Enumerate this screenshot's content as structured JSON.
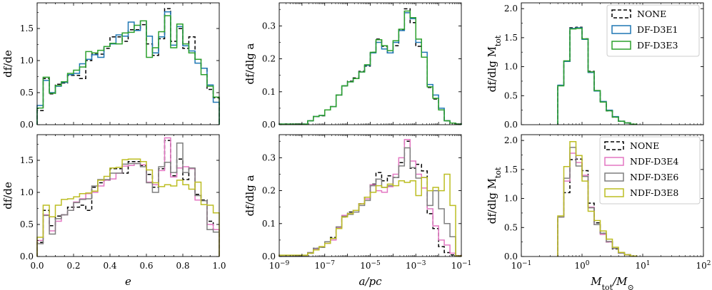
{
  "figure": {
    "legend_top": [
      "NONE",
      "DF-D3E1",
      "DF-D3E3"
    ],
    "legend_bottom": [
      "NONE",
      "NDF-D3E4",
      "NDF-D3E6",
      "NDF-D3E8"
    ]
  },
  "colors": {
    "NONE": "#000000",
    "DF-D3E1": "#1f77b4",
    "DF-D3E3": "#2ca02c",
    "NDF-D3E4": "#e377c2",
    "NDF-D3E6": "#7f7f7f",
    "NDF-D3E8": "#bcbd22"
  },
  "axis_labels": {
    "e_y": "df/de",
    "e_x": "e",
    "a_y": "df/dlg a",
    "a_x": "a/pc",
    "m_y": "df/dlg M",
    "m_y_sub": "tot",
    "m_x": "M",
    "m_x_sub": "tot",
    "m_x_over": "/M",
    "m_x_sun": "⊙"
  },
  "chart_data": [
    {
      "type": "histogram",
      "panel": "top-left",
      "xscale": "linear",
      "xlabel": "",
      "ylabel": "df/de",
      "xlim": [
        0,
        1
      ],
      "ylim": [
        0,
        1.9
      ],
      "xticks": [],
      "yticks": [
        0,
        0.5,
        1.0,
        1.5
      ],
      "ytick_labels": [
        "0.0",
        "0.5",
        "1.0",
        "1.5"
      ],
      "edges": [
        0,
        0.033,
        0.067,
        0.1,
        0.133,
        0.167,
        0.2,
        0.233,
        0.267,
        0.3,
        0.333,
        0.367,
        0.4,
        0.433,
        0.467,
        0.5,
        0.533,
        0.567,
        0.6,
        0.633,
        0.667,
        0.7,
        0.733,
        0.767,
        0.8,
        0.833,
        0.867,
        0.9,
        0.933,
        0.967,
        1.0
      ],
      "series": [
        {
          "name": "NONE",
          "dashed": true,
          "values": [
            0.22,
            0.72,
            0.48,
            0.63,
            0.65,
            0.77,
            0.77,
            0.72,
            1.0,
            1.1,
            1.1,
            1.19,
            1.37,
            1.37,
            1.3,
            1.48,
            1.48,
            1.56,
            1.26,
            1.08,
            1.34,
            1.81,
            1.3,
            1.5,
            1.19,
            1.37,
            1.02,
            0.88,
            0.55,
            0.42
          ]
        },
        {
          "name": "DF-D3E1",
          "values": [
            0.3,
            0.69,
            0.5,
            0.6,
            0.66,
            0.78,
            0.8,
            0.95,
            1.02,
            1.09,
            1.05,
            1.22,
            1.26,
            1.4,
            1.38,
            1.6,
            1.47,
            1.62,
            1.38,
            1.12,
            1.37,
            1.76,
            1.24,
            1.53,
            1.23,
            1.15,
            0.96,
            0.88,
            0.62,
            0.35
          ]
        },
        {
          "name": "DF-D3E3",
          "values": [
            0.26,
            0.74,
            0.49,
            0.61,
            0.67,
            0.8,
            0.85,
            0.9,
            1.14,
            1.12,
            1.16,
            1.22,
            1.27,
            1.26,
            1.43,
            1.44,
            1.55,
            1.62,
            1.05,
            1.2,
            1.45,
            1.7,
            1.2,
            1.57,
            1.26,
            1.12,
            1.02,
            0.78,
            0.6,
            0.43
          ]
        }
      ]
    },
    {
      "type": "histogram",
      "panel": "top-middle",
      "xscale": "log",
      "xlabel": "",
      "ylabel": "df/dlg a",
      "xlim": [
        -9,
        -1
      ],
      "ylim": [
        0,
        0.37
      ],
      "xticks": [],
      "yticks": [
        0,
        0.1,
        0.2,
        0.3
      ],
      "ytick_labels": [
        "0.0",
        "0.1",
        "0.2",
        "0.3"
      ],
      "edges": [
        -9.0,
        -8.75,
        -8.5,
        -8.25,
        -8.0,
        -7.75,
        -7.5,
        -7.25,
        -7.0,
        -6.75,
        -6.5,
        -6.25,
        -6.0,
        -5.75,
        -5.5,
        -5.25,
        -5.0,
        -4.75,
        -4.5,
        -4.25,
        -4.0,
        -3.75,
        -3.5,
        -3.25,
        -3.0,
        -2.75,
        -2.5,
        -2.25,
        -2.0,
        -1.75,
        -1.5,
        -1.25,
        -1.0
      ],
      "series": [
        {
          "name": "NONE",
          "dashed": true,
          "values": [
            0.002,
            0.002,
            0.002,
            0.002,
            0.002,
            0.012,
            0.025,
            0.027,
            0.045,
            0.055,
            0.09,
            0.118,
            0.132,
            0.142,
            0.162,
            0.178,
            0.22,
            0.26,
            0.238,
            0.218,
            0.24,
            0.288,
            0.352,
            0.31,
            0.238,
            0.205,
            0.113,
            0.078,
            0.045,
            0.012,
            0.005,
            0.002
          ]
        },
        {
          "name": "DF-D3E1",
          "values": [
            0.002,
            0.002,
            0.002,
            0.002,
            0.002,
            0.012,
            0.025,
            0.028,
            0.045,
            0.055,
            0.09,
            0.118,
            0.13,
            0.14,
            0.16,
            0.18,
            0.218,
            0.25,
            0.23,
            0.218,
            0.25,
            0.286,
            0.34,
            0.322,
            0.25,
            0.22,
            0.122,
            0.09,
            0.05,
            0.012,
            0.005,
            0.002
          ]
        },
        {
          "name": "DF-D3E3",
          "values": [
            0.002,
            0.002,
            0.002,
            0.002,
            0.002,
            0.012,
            0.025,
            0.028,
            0.045,
            0.055,
            0.09,
            0.118,
            0.13,
            0.14,
            0.16,
            0.182,
            0.22,
            0.258,
            0.24,
            0.225,
            0.255,
            0.29,
            0.345,
            0.325,
            0.26,
            0.205,
            0.115,
            0.08,
            0.045,
            0.012,
            0.005,
            0.002
          ]
        }
      ]
    },
    {
      "type": "histogram",
      "panel": "top-right",
      "xscale": "log",
      "xlabel": "",
      "ylabel": "df/dlg M_tot",
      "xlim": [
        -1,
        2
      ],
      "ylim": [
        0,
        2.1
      ],
      "xticks": [],
      "yticks": [
        0,
        0.5,
        1.0,
        1.5,
        2.0
      ],
      "ytick_labels": [
        "0.0",
        "0.5",
        "1.0",
        "1.5",
        "2.0"
      ],
      "edges": [
        -0.4,
        -0.3,
        -0.2,
        -0.1,
        0.0,
        0.1,
        0.2,
        0.3,
        0.4,
        0.5,
        0.6,
        0.7,
        0.8,
        0.9
      ],
      "legend": "top-right",
      "series": [
        {
          "name": "NONE",
          "dashed": true,
          "values": [
            0.68,
            1.09,
            1.67,
            1.68,
            1.48,
            0.92,
            0.58,
            0.39,
            0.24,
            0.13,
            0.06,
            0.03,
            0.01
          ]
        },
        {
          "name": "DF-D3E1",
          "values": [
            0.68,
            1.09,
            1.66,
            1.67,
            1.47,
            0.9,
            0.58,
            0.4,
            0.25,
            0.14,
            0.06,
            0.03,
            0.01
          ]
        },
        {
          "name": "DF-D3E3",
          "values": [
            0.67,
            1.1,
            1.65,
            1.66,
            1.48,
            0.91,
            0.59,
            0.39,
            0.24,
            0.13,
            0.06,
            0.03,
            0.01
          ]
        }
      ]
    },
    {
      "type": "histogram",
      "panel": "bottom-left",
      "xscale": "linear",
      "xlabel": "e",
      "ylabel": "df/de",
      "xlim": [
        0,
        1
      ],
      "ylim": [
        0,
        1.9
      ],
      "xticks": [
        0,
        0.2,
        0.4,
        0.6,
        0.8,
        1.0
      ],
      "xtick_labels": [
        "0.0",
        "0.2",
        "0.4",
        "0.6",
        "0.8",
        "1.0"
      ],
      "yticks": [
        0,
        0.5,
        1.0,
        1.5
      ],
      "ytick_labels": [
        "0.0",
        "0.5",
        "1.0",
        "1.5"
      ],
      "edges": [
        0,
        0.033,
        0.067,
        0.1,
        0.133,
        0.167,
        0.2,
        0.233,
        0.267,
        0.3,
        0.333,
        0.367,
        0.4,
        0.433,
        0.467,
        0.5,
        0.533,
        0.567,
        0.6,
        0.633,
        0.667,
        0.7,
        0.733,
        0.767,
        0.8,
        0.833,
        0.867,
        0.9,
        0.933,
        0.967,
        1.0
      ],
      "legend": "top-right",
      "series": [
        {
          "name": "NONE",
          "dashed": true,
          "values": [
            0.22,
            0.72,
            0.48,
            0.63,
            0.65,
            0.77,
            0.77,
            0.8,
            0.72,
            1.08,
            1.15,
            1.19,
            1.37,
            1.37,
            1.3,
            1.48,
            1.48,
            1.42,
            1.28,
            1.08,
            1.37,
            1.81,
            1.26,
            1.52,
            1.2,
            1.37,
            0.97,
            0.88,
            0.55,
            0.42
          ]
        },
        {
          "name": "NDF-D3E4",
          "values": [
            0.25,
            0.65,
            0.4,
            0.55,
            0.65,
            0.72,
            0.85,
            0.9,
            0.98,
            1.0,
            1.1,
            1.19,
            1.21,
            1.3,
            1.41,
            1.42,
            1.45,
            1.43,
            1.16,
            1.12,
            1.34,
            1.85,
            1.24,
            1.38,
            1.4,
            1.37,
            0.88,
            0.87,
            0.5,
            0.42
          ]
        },
        {
          "name": "NDF-D3E6",
          "values": [
            0.2,
            0.64,
            0.35,
            0.59,
            0.65,
            0.72,
            0.84,
            0.89,
            0.9,
            1.1,
            1.2,
            1.2,
            1.3,
            1.3,
            1.44,
            1.45,
            1.45,
            1.4,
            1.15,
            1.0,
            1.4,
            1.47,
            1.31,
            1.77,
            1.31,
            1.38,
            0.95,
            0.87,
            0.42,
            0.38
          ]
        },
        {
          "name": "NDF-D3E8",
          "values": [
            0.3,
            0.8,
            0.62,
            0.8,
            0.89,
            0.9,
            0.93,
            0.98,
            0.99,
            1.02,
            1.19,
            1.25,
            1.38,
            1.39,
            1.51,
            1.52,
            1.52,
            1.48,
            1.35,
            1.15,
            1.09,
            1.12,
            1.1,
            1.19,
            1.12,
            1.05,
            1.16,
            0.81,
            0.8,
            0.68
          ]
        }
      ]
    },
    {
      "type": "histogram",
      "panel": "bottom-middle",
      "xscale": "log",
      "xlabel": "a/pc",
      "ylabel": "df/dlg a",
      "xlim": [
        -9,
        -1
      ],
      "ylim": [
        0,
        0.37
      ],
      "xticks": [
        -9,
        -7,
        -5,
        -3,
        -1
      ],
      "xtick_labels": [
        "10^-9",
        "10^-7",
        "10^-5",
        "10^-3",
        "10^-1"
      ],
      "yticks": [
        0,
        0.1,
        0.2,
        0.3
      ],
      "ytick_labels": [
        "0.0",
        "0.1",
        "0.2",
        "0.3"
      ],
      "edges": [
        -9.0,
        -8.75,
        -8.5,
        -8.25,
        -8.0,
        -7.75,
        -7.5,
        -7.25,
        -7.0,
        -6.75,
        -6.5,
        -6.25,
        -6.0,
        -5.75,
        -5.5,
        -5.25,
        -5.0,
        -4.75,
        -4.5,
        -4.25,
        -4.0,
        -3.75,
        -3.5,
        -3.25,
        -3.0,
        -2.75,
        -2.5,
        -2.25,
        -2.0,
        -1.75,
        -1.5,
        -1.25,
        -1.0
      ],
      "series": [
        {
          "name": "NONE",
          "dashed": true,
          "values": [
            0.002,
            0.002,
            0.002,
            0.002,
            0.002,
            0.01,
            0.025,
            0.028,
            0.045,
            0.058,
            0.085,
            0.12,
            0.135,
            0.14,
            0.16,
            0.18,
            0.22,
            0.255,
            0.23,
            0.245,
            0.24,
            0.285,
            0.35,
            0.268,
            0.28,
            0.26,
            0.13,
            0.085,
            0.03,
            0.012,
            0.005,
            0.002
          ]
        },
        {
          "name": "NDF-D3E4",
          "values": [
            0.002,
            0.002,
            0.002,
            0.002,
            0.002,
            0.012,
            0.022,
            0.03,
            0.04,
            0.05,
            0.088,
            0.125,
            0.13,
            0.14,
            0.16,
            0.175,
            0.218,
            0.2,
            0.195,
            0.212,
            0.25,
            0.3,
            0.355,
            0.29,
            0.25,
            0.208,
            0.145,
            0.093,
            0.05,
            0.035,
            0.01,
            0.003
          ]
        },
        {
          "name": "NDF-D3E6",
          "values": [
            0.002,
            0.002,
            0.002,
            0.002,
            0.002,
            0.012,
            0.025,
            0.028,
            0.045,
            0.055,
            0.09,
            0.122,
            0.128,
            0.135,
            0.155,
            0.17,
            0.215,
            0.235,
            0.21,
            0.215,
            0.24,
            0.275,
            0.33,
            0.27,
            0.238,
            0.24,
            0.155,
            0.2,
            0.145,
            0.1,
            0.06,
            0.002
          ]
        },
        {
          "name": "NDF-D3E8",
          "values": [
            0.004,
            0.004,
            0.004,
            0.004,
            0.004,
            0.01,
            0.02,
            0.03,
            0.04,
            0.055,
            0.085,
            0.12,
            0.13,
            0.14,
            0.16,
            0.18,
            0.195,
            0.215,
            0.21,
            0.22,
            0.215,
            0.23,
            0.225,
            0.23,
            0.185,
            0.24,
            0.2,
            0.21,
            0.2,
            0.25,
            0.155,
            0.002
          ]
        }
      ]
    },
    {
      "type": "histogram",
      "panel": "bottom-right",
      "xscale": "log",
      "xlabel": "M_tot/M_sun",
      "ylabel": "df/dlg M_tot",
      "xlim": [
        -1,
        2
      ],
      "ylim": [
        0,
        2.1
      ],
      "xticks": [
        -1,
        0,
        1,
        2
      ],
      "xtick_labels": [
        "10^-1",
        "10^0",
        "10^1",
        "10^2"
      ],
      "yticks": [
        0,
        0.5,
        1.0,
        1.5,
        2.0
      ],
      "ytick_labels": [
        "0.0",
        "0.5",
        "1.0",
        "1.5",
        "2.0"
      ],
      "edges": [
        -0.4,
        -0.3,
        -0.2,
        -0.1,
        0.0,
        0.1,
        0.2,
        0.3,
        0.4,
        0.5,
        0.6,
        0.7,
        0.8,
        0.9
      ],
      "legend": "top-right",
      "series": [
        {
          "name": "NONE",
          "dashed": true,
          "values": [
            0.68,
            1.1,
            1.67,
            1.68,
            1.48,
            0.92,
            0.58,
            0.4,
            0.25,
            0.13,
            0.06,
            0.03,
            0.01
          ]
        },
        {
          "name": "NDF-D3E4",
          "values": [
            0.68,
            1.3,
            1.78,
            1.62,
            1.4,
            0.85,
            0.55,
            0.38,
            0.25,
            0.14,
            0.06,
            0.03,
            0.01
          ]
        },
        {
          "name": "NDF-D3E6",
          "values": [
            0.68,
            1.35,
            1.88,
            1.56,
            1.38,
            0.84,
            0.55,
            0.4,
            0.26,
            0.14,
            0.06,
            0.03,
            0.01
          ]
        },
        {
          "name": "NDF-D3E8",
          "values": [
            0.7,
            1.55,
            1.98,
            1.74,
            1.3,
            0.78,
            0.62,
            0.44,
            0.3,
            0.16,
            0.07,
            0.03,
            0.01
          ]
        }
      ]
    }
  ]
}
